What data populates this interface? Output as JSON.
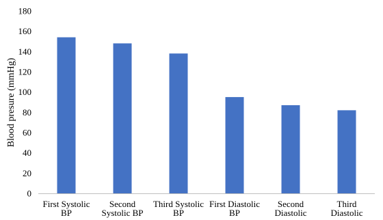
{
  "chart_data": {
    "type": "bar",
    "categories": [
      [
        "First Systolic",
        "BP"
      ],
      [
        "Second",
        "Systolic BP"
      ],
      [
        "Third Systolic",
        "BP"
      ],
      [
        "First Diastolic",
        "BP"
      ],
      [
        "Second",
        "Diastolic"
      ],
      [
        "Third",
        "Diastolic"
      ]
    ],
    "values": [
      154,
      148,
      138,
      95,
      87,
      82
    ],
    "ylabel": "Blood presure (mmHg)",
    "ylim": [
      0,
      180
    ],
    "yticks": [
      0,
      20,
      40,
      60,
      80,
      100,
      120,
      140,
      160,
      180
    ],
    "grid": false,
    "bar_color": "#4472C4",
    "axis_color": "#bfbfbf"
  }
}
